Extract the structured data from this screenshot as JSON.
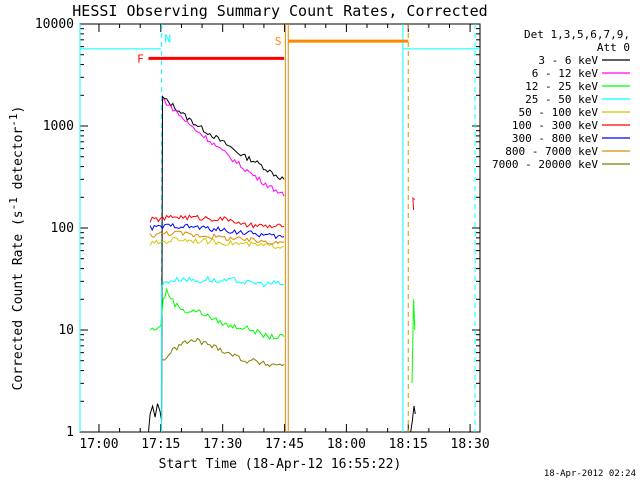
{
  "chart_data": {
    "type": "line",
    "title": "HESSI Observing Summary Count Rates, Corrected",
    "xlabel": "Start Time (18-Apr-12 16:55:22)",
    "ylabel_main": "Corrected Count Rate (s",
    "ylabel_sup1": "-1",
    "ylabel_mid": " detector",
    "ylabel_sup2": "-1",
    "ylabel_end": ")",
    "y_scale": "log",
    "ylim": [
      1,
      10000
    ],
    "x_units": "minutes since 16:55:22",
    "xlim": [
      0,
      97
    ],
    "x_ticks": [
      {
        "label": "17:00",
        "value": 4.6
      },
      {
        "label": "17:15",
        "value": 19.6
      },
      {
        "label": "17:30",
        "value": 34.6
      },
      {
        "label": "17:45",
        "value": 49.6
      },
      {
        "label": "18:00",
        "value": 64.6
      },
      {
        "label": "18:15",
        "value": 79.6
      },
      {
        "label": "18:30",
        "value": 94.6
      }
    ],
    "y_ticks": [
      {
        "label": "1",
        "value": 1
      },
      {
        "label": "10",
        "value": 10
      },
      {
        "label": "100",
        "value": 100
      },
      {
        "label": "1000",
        "value": 1000
      },
      {
        "label": "10000",
        "value": 10000
      }
    ],
    "legend": {
      "header1": "Det 1,3,5,6,7,9,",
      "header2": "Att 0",
      "placement": "right"
    },
    "series": [
      {
        "name": "3 - 6 keV",
        "color": "#000000",
        "segments": [
          [
            [
              16.6,
              1
            ],
            [
              17.0,
              1.5
            ],
            [
              17.6,
              1.8
            ],
            [
              18.2,
              1.4
            ],
            [
              18.8,
              1.9
            ],
            [
              19.4,
              1.6
            ],
            [
              19.8,
              1.3
            ],
            [
              20.0,
              1900
            ],
            [
              22,
              1650
            ],
            [
              24,
              1420
            ],
            [
              26,
              1200
            ],
            [
              28,
              1050
            ],
            [
              30,
              920
            ],
            [
              32,
              820
            ],
            [
              34,
              720
            ],
            [
              36,
              640
            ],
            [
              38,
              560
            ],
            [
              40,
              500
            ],
            [
              42,
              460
            ],
            [
              44,
              410
            ],
            [
              46,
              360
            ],
            [
              48,
              320
            ],
            [
              49.5,
              300
            ]
          ],
          [
            [
              80.2,
              1
            ],
            [
              80.6,
              1.3
            ],
            [
              81.0,
              1.8
            ],
            [
              81.3,
              1.5
            ]
          ]
        ]
      },
      {
        "name": "6 - 12 keV",
        "color": "#ff00ff",
        "segments": [
          [
            [
              20.0,
              1850
            ],
            [
              22,
              1550
            ],
            [
              24,
              1300
            ],
            [
              26,
              1080
            ],
            [
              28,
              920
            ],
            [
              30,
              800
            ],
            [
              32,
              690
            ],
            [
              34,
              590
            ],
            [
              36,
              510
            ],
            [
              38,
              440
            ],
            [
              40,
              380
            ],
            [
              42,
              330
            ],
            [
              44,
              290
            ],
            [
              46,
              255
            ],
            [
              48,
              230
            ],
            [
              49.5,
              205
            ]
          ],
          [
            [
              80.9,
              195
            ],
            [
              81.2,
              190
            ]
          ]
        ]
      },
      {
        "name": "12 - 25 keV",
        "color": "#00ff00",
        "segments": [
          [
            [
              17.0,
              10
            ],
            [
              18,
              10.3
            ],
            [
              19,
              10.6
            ],
            [
              19.6,
              11
            ],
            [
              20.2,
              20
            ],
            [
              21,
              24
            ],
            [
              22,
              21
            ],
            [
              23,
              18
            ],
            [
              24,
              17
            ],
            [
              26,
              15
            ],
            [
              28,
              15.5
            ],
            [
              30,
              14.5
            ],
            [
              32,
              13
            ],
            [
              34,
              12
            ],
            [
              36,
              11
            ],
            [
              38,
              10.8
            ],
            [
              40,
              10.5
            ],
            [
              42,
              10
            ],
            [
              44,
              9
            ],
            [
              46,
              8.6
            ],
            [
              48,
              8.5
            ],
            [
              49.5,
              8.6
            ]
          ],
          [
            [
              80.5,
              3
            ],
            [
              80.9,
              20
            ],
            [
              81.2,
              10
            ]
          ]
        ]
      },
      {
        "name": "25 - 50 keV",
        "color": "#00ffff",
        "segments": [
          [
            [
              0,
              5700
            ],
            [
              19.6,
              5700
            ]
          ],
          [
            [
              19.8,
              1
            ],
            [
              19.8,
              27
            ],
            [
              21,
              30
            ],
            [
              23,
              31
            ],
            [
              25,
              32
            ],
            [
              27,
              31
            ],
            [
              29,
              30
            ],
            [
              31,
              32
            ],
            [
              33,
              30
            ],
            [
              35,
              30
            ],
            [
              37,
              31
            ],
            [
              39,
              30
            ],
            [
              41,
              29
            ],
            [
              43,
              29
            ],
            [
              45,
              28
            ],
            [
              47,
              29
            ],
            [
              49.5,
              28
            ]
          ],
          [
            [
              78.3,
              5700
            ],
            [
              97,
              5700
            ]
          ]
        ]
      },
      {
        "name": "50 - 100 keV",
        "color": "#d4c800",
        "segments": [
          [
            [
              17.0,
              70
            ],
            [
              19,
              72
            ],
            [
              21,
              74
            ],
            [
              23,
              78
            ],
            [
              25,
              77
            ],
            [
              27,
              76
            ],
            [
              29,
              75
            ],
            [
              31,
              74
            ],
            [
              33,
              73
            ],
            [
              35,
              72
            ],
            [
              37,
              71
            ],
            [
              39,
              70
            ],
            [
              41,
              69
            ],
            [
              43,
              68
            ],
            [
              45,
              67
            ],
            [
              47,
              67
            ],
            [
              49.5,
              66
            ]
          ]
        ]
      },
      {
        "name": "100 - 300 keV",
        "color": "#ff0000",
        "segments": [
          [
            [
              17.0,
              120
            ],
            [
              19,
              122
            ],
            [
              21,
              125
            ],
            [
              23,
              130
            ],
            [
              25,
              128
            ],
            [
              27,
              127
            ],
            [
              29,
              126
            ],
            [
              31,
              125
            ],
            [
              33,
              123
            ],
            [
              35,
              122
            ],
            [
              37,
              121
            ],
            [
              39,
              106
            ],
            [
              41,
              106
            ],
            [
              43,
              105
            ],
            [
              45,
              104
            ],
            [
              47,
              103
            ],
            [
              49.5,
              104
            ]
          ],
          [
            [
              80.7,
              200
            ],
            [
              80.9,
              150
            ]
          ]
        ]
      },
      {
        "name": "300 - 800 keV",
        "color": "#0000ff",
        "segments": [
          [
            [
              17.0,
              100
            ],
            [
              19,
              102
            ],
            [
              21,
              104
            ],
            [
              23,
              106
            ],
            [
              25,
              104
            ],
            [
              27,
              103
            ],
            [
              29,
              101
            ],
            [
              31,
              99
            ],
            [
              33,
              97
            ],
            [
              35,
              95
            ],
            [
              37,
              93
            ],
            [
              39,
              91
            ],
            [
              41,
              89
            ],
            [
              43,
              87
            ],
            [
              45,
              85
            ],
            [
              47,
              83
            ],
            [
              49.5,
              82
            ]
          ]
        ]
      },
      {
        "name": "800 - 7000 keV",
        "color": "#e08a00",
        "segments": [
          [
            [
              17.0,
              85
            ],
            [
              19,
              87
            ],
            [
              21,
              89
            ],
            [
              23,
              90
            ],
            [
              25,
              88
            ],
            [
              27,
              86
            ],
            [
              29,
              85
            ],
            [
              31,
              84
            ],
            [
              33,
              82
            ],
            [
              35,
              80
            ],
            [
              37,
              79
            ],
            [
              39,
              77
            ],
            [
              41,
              76
            ],
            [
              43,
              75
            ],
            [
              45,
              74
            ],
            [
              47,
              73
            ],
            [
              49.5,
              73
            ]
          ]
        ]
      },
      {
        "name": "7000 - 20000 keV",
        "color": "#808000",
        "segments": [
          [
            [
              20.0,
              5
            ],
            [
              21,
              5.5
            ],
            [
              22,
              6
            ],
            [
              23,
              6.5
            ],
            [
              24,
              7
            ],
            [
              25,
              7.5
            ],
            [
              26,
              7.5
            ],
            [
              28,
              8
            ],
            [
              30,
              7.5
            ],
            [
              32,
              7
            ],
            [
              34,
              6.5
            ],
            [
              36,
              6
            ],
            [
              38,
              5.5
            ],
            [
              40,
              5
            ],
            [
              42,
              5
            ],
            [
              44,
              4.7
            ],
            [
              46,
              4.6
            ],
            [
              49.5,
              4.6
            ]
          ]
        ]
      }
    ],
    "orbit_bars": [
      {
        "label": "F",
        "color": "#ff0000",
        "x0": 16.6,
        "x1": 49.5,
        "y": 4600
      },
      {
        "label": "N",
        "color": "#00ffff",
        "x0": 19.8,
        "x1": 19.8,
        "y": 7200
      },
      {
        "label": "S",
        "color": "#ff8800",
        "x0": 50.5,
        "x1": 79.6,
        "y": 6800
      }
    ],
    "vlines": [
      {
        "x": 0,
        "color": "#00ffff",
        "dash": false
      },
      {
        "x": 19.8,
        "color": "#00ffff",
        "dash": true
      },
      {
        "x": 49.8,
        "color": "#e08a00",
        "dash": false
      },
      {
        "x": 50.5,
        "color": "#e08a00",
        "dash": false
      },
      {
        "x": 78.3,
        "color": "#00ffff",
        "dash": false
      },
      {
        "x": 79.6,
        "color": "#e08a00",
        "dash": true
      },
      {
        "x": 95.8,
        "color": "#00ffff",
        "dash": true
      }
    ],
    "timestamp": "18-Apr-2012 02:24"
  }
}
